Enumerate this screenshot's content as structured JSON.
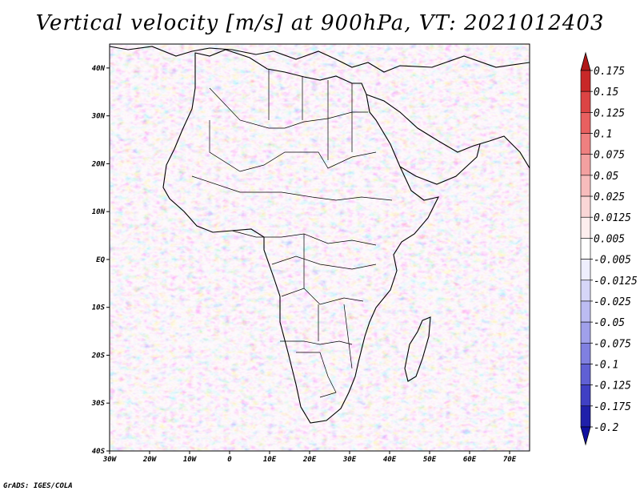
{
  "title": "Vertical velocity [m/s] at 900hPa, VT: 2021012403",
  "credit": "GrADS: IGES/COLA",
  "map": {
    "lat_labels": [
      "40N",
      "30N",
      "20N",
      "10N",
      "EQ",
      "10S",
      "20S",
      "30S",
      "40S"
    ],
    "lon_labels": [
      "30W",
      "20W",
      "10W",
      "0",
      "10E",
      "20E",
      "30E",
      "40E",
      "50E",
      "60E",
      "70E"
    ],
    "lat_range": [
      -40,
      45
    ],
    "lon_range": [
      -30,
      75
    ]
  },
  "colorbar": {
    "levels": [
      "0.175",
      "0.15",
      "0.125",
      "0.1",
      "0.075",
      "0.05",
      "0.025",
      "0.0125",
      "0.005",
      "-0.005",
      "-0.0125",
      "-0.025",
      "-0.05",
      "-0.075",
      "-0.1",
      "-0.125",
      "-0.175",
      "-0.2"
    ],
    "colors": [
      "#b01818",
      "#c82828",
      "#dc4444",
      "#e86060",
      "#ef8080",
      "#f3a0a0",
      "#f7bcbc",
      "#fad6d6",
      "#fdeeee",
      "#ffffff",
      "#eeeefd",
      "#d6d6f8",
      "#bcbcf2",
      "#a0a0ea",
      "#8080e0",
      "#6060d4",
      "#4040c4",
      "#2020aa",
      "#1010a0"
    ]
  }
}
